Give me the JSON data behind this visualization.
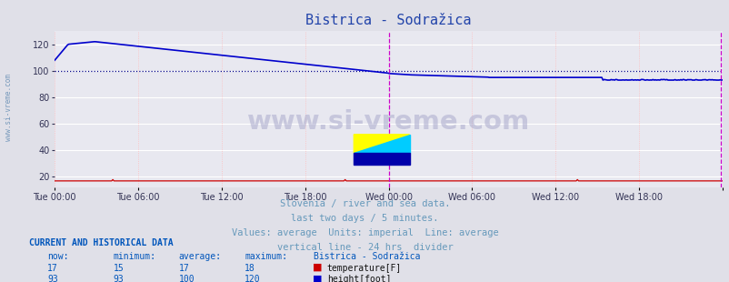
{
  "title": "Bistrica - Sodražica",
  "title_color": "#2244aa",
  "bg_color": "#e0e0e8",
  "plot_bg_color": "#e8e8f0",
  "x_tick_labels": [
    "Tue 00:00",
    "Tue 06:00",
    "Tue 12:00",
    "Tue 18:00",
    "Wed 00:00",
    "Wed 06:00",
    "Wed 12:00",
    "Wed 18:00",
    ""
  ],
  "y_ticks": [
    20,
    40,
    60,
    80,
    100,
    120
  ],
  "ylim": [
    12,
    130
  ],
  "num_points": 576,
  "temp_color": "#cc0000",
  "height_color": "#0000cc",
  "avg_line_color": "#000088",
  "divider_color": "#cc00cc",
  "watermark_text": "www.si-vreme.com",
  "sidebar_text": "www.si-vreme.com",
  "subtitle_lines": [
    "Slovenia / river and sea data.",
    "last two days / 5 minutes.",
    "Values: average  Units: imperial  Line: average",
    "vertical line - 24 hrs  divider"
  ],
  "subtitle_color": "#6699bb",
  "current_data_header": "CURRENT AND HISTORICAL DATA",
  "current_data_color": "#0055bb",
  "table_headers": [
    "now:",
    "minimum:",
    "average:",
    "maximum:",
    "Bistrica - Sodražica"
  ],
  "row1": {
    "now": "17",
    "min": "15",
    "avg": "17",
    "max": "18",
    "label": "temperature[F]",
    "color": "#cc0000"
  },
  "row2": {
    "now": "93",
    "min": "93",
    "avg": "100",
    "max": "120",
    "label": "height[foot]",
    "color": "#0000cc"
  }
}
